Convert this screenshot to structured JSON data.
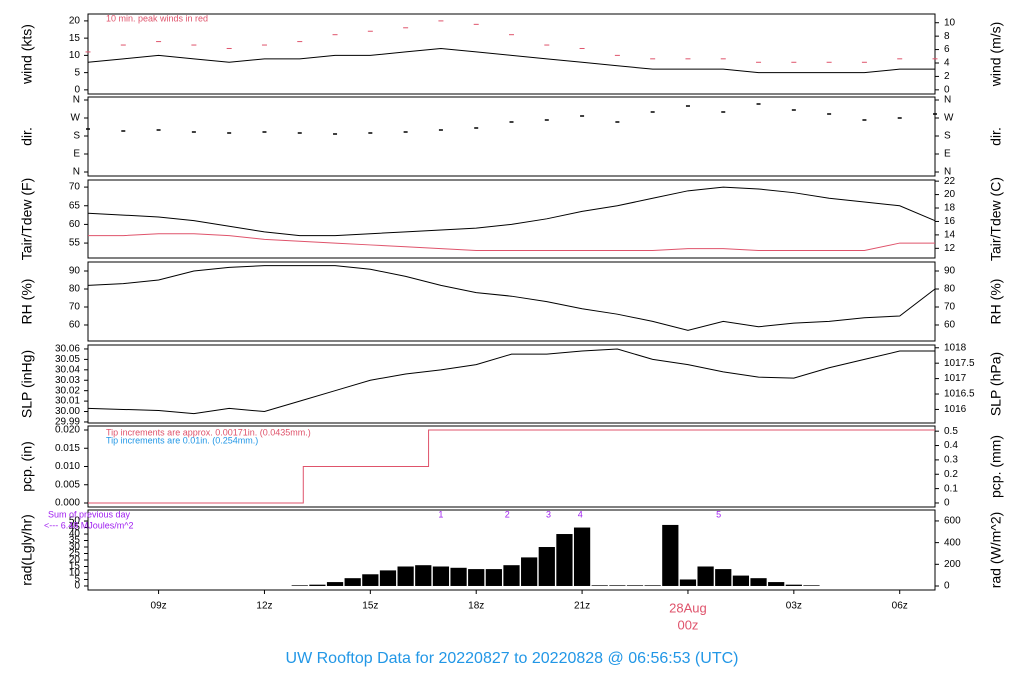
{
  "title": "UW Rooftop Data for 20220827  to  20220828 @ 06:56:53  (UTC)",
  "chart_data": [
    {
      "type": "line",
      "ylabel": "wind (kts)",
      "y2label": "wind (m/s)",
      "xlim": [
        7,
        31
      ],
      "ylim": [
        -1.2,
        22
      ],
      "yticks": [
        0,
        5,
        10,
        15,
        20
      ],
      "y2lim": [
        -0.62,
        11.3
      ],
      "y2ticks": [
        0,
        2,
        4,
        6,
        8,
        10
      ],
      "annotations": [
        {
          "text": "10 min. peak winds in red",
          "color": "#df536b"
        }
      ],
      "x": [
        7,
        8,
        9,
        10,
        11,
        12,
        13,
        14,
        15,
        16,
        17,
        18,
        19,
        20,
        21,
        22,
        23,
        24,
        25,
        26,
        27,
        28,
        29,
        30,
        31
      ],
      "series": [
        {
          "color": "#000000",
          "style": "line",
          "values": [
            8,
            9,
            10,
            9,
            8,
            9,
            9,
            10,
            10,
            11,
            12,
            11,
            10,
            9,
            8,
            7,
            6,
            6,
            6,
            5,
            5,
            5,
            5,
            6,
            6
          ]
        },
        {
          "color": "#df536b",
          "style": "dash",
          "values": [
            11,
            13,
            14,
            13,
            12,
            13,
            14,
            16,
            17,
            18,
            20,
            19,
            16,
            13,
            12,
            10,
            9,
            9,
            9,
            8,
            8,
            8,
            8,
            9,
            9
          ]
        }
      ]
    },
    {
      "type": "scatter",
      "ylabel": "dir.",
      "y2label": "dir.",
      "xlim": [
        7,
        31
      ],
      "ylim": [
        -20,
        375
      ],
      "yticks": [
        {
          "value": 0,
          "label": "N"
        },
        {
          "value": 90,
          "label": "E"
        },
        {
          "value": 180,
          "label": "S"
        },
        {
          "value": 270,
          "label": "W"
        },
        {
          "value": 360,
          "label": "N"
        }
      ],
      "y2lim": [
        -20,
        375
      ],
      "y2ticks": [
        {
          "value": 0,
          "label": "N"
        },
        {
          "value": 90,
          "label": "E"
        },
        {
          "value": 180,
          "label": "S"
        },
        {
          "value": 270,
          "label": "W"
        },
        {
          "value": 360,
          "label": "N"
        }
      ],
      "x": [
        7,
        8,
        9,
        10,
        11,
        12,
        13,
        14,
        15,
        16,
        17,
        18,
        19,
        20,
        21,
        22,
        23,
        24,
        25,
        26,
        27,
        28,
        29,
        30,
        31
      ],
      "series": [
        {
          "color": "#000000",
          "style": "scatter",
          "values": [
            215,
            205,
            210,
            200,
            195,
            200,
            195,
            190,
            195,
            200,
            210,
            220,
            250,
            260,
            280,
            250,
            300,
            330,
            300,
            340,
            310,
            290,
            260,
            270,
            290
          ]
        }
      ]
    },
    {
      "type": "line",
      "ylabel": "Tair/Tdew (F)",
      "y2label": "Tair/Tdew (C)",
      "xlim": [
        7,
        31
      ],
      "ylim": [
        51,
        71.9
      ],
      "yticks": [
        55,
        60,
        65,
        70
      ],
      "y2lim": [
        10.56,
        22.17
      ],
      "y2ticks": [
        12,
        14,
        16,
        18,
        20,
        22
      ],
      "x": [
        7,
        8,
        9,
        10,
        11,
        12,
        13,
        14,
        15,
        16,
        17,
        18,
        19,
        20,
        21,
        22,
        23,
        24,
        25,
        26,
        27,
        28,
        29,
        30,
        31
      ],
      "series": [
        {
          "color": "#000000",
          "style": "line",
          "values": [
            63,
            62.5,
            62,
            61,
            59.5,
            58,
            57,
            57,
            57.5,
            58,
            58.5,
            59,
            60,
            61.5,
            63.5,
            65,
            67,
            69,
            70,
            69.5,
            68.5,
            67,
            66,
            65,
            61
          ]
        },
        {
          "color": "#df536b",
          "style": "line",
          "values": [
            57,
            57,
            57.5,
            57.5,
            57,
            56,
            55.5,
            55,
            54.5,
            54,
            53.5,
            53,
            53,
            53,
            53,
            53,
            53,
            53.5,
            53.5,
            53,
            53,
            53,
            53,
            55,
            55
          ]
        }
      ]
    },
    {
      "type": "line",
      "ylabel": "RH (%)",
      "y2label": "RH (%)",
      "xlim": [
        7,
        31
      ],
      "ylim": [
        51.1,
        95
      ],
      "yticks": [
        60,
        70,
        80,
        90
      ],
      "y2lim": [
        51.1,
        95
      ],
      "y2ticks": [
        60,
        70,
        80,
        90
      ],
      "x": [
        7,
        8,
        9,
        10,
        11,
        12,
        13,
        14,
        15,
        16,
        17,
        18,
        19,
        20,
        21,
        22,
        23,
        24,
        25,
        26,
        27,
        28,
        29,
        30,
        31
      ],
      "series": [
        {
          "color": "#000000",
          "style": "line",
          "values": [
            82,
            83,
            85,
            90,
            92,
            93,
            93,
            93,
            91,
            87,
            82,
            78,
            76,
            73,
            69,
            66,
            62,
            57,
            62,
            59,
            61,
            62,
            64,
            65,
            80
          ]
        }
      ]
    },
    {
      "type": "line",
      "ylabel": "SLP (inHg)",
      "y2label": "SLP (hPa)",
      "xlim": [
        7,
        31
      ],
      "ylim": [
        29.989,
        30.0638
      ],
      "yticks": [
        29.99,
        {
          "value": 30,
          "label": "30.00"
        },
        30.01,
        30.02,
        30.03,
        30.04,
        30.05,
        30.06
      ],
      "y2lim": [
        1015.56,
        1018.09
      ],
      "y2ticks": [
        1016,
        1016.5,
        1017,
        1017.5,
        1018
      ],
      "x": [
        7,
        8,
        9,
        10,
        11,
        12,
        13,
        14,
        15,
        16,
        17,
        18,
        19,
        20,
        21,
        22,
        23,
        24,
        25,
        26,
        27,
        28,
        29,
        30,
        31
      ],
      "series": [
        {
          "color": "#000000",
          "style": "line",
          "values": [
            30.003,
            30.002,
            30.001,
            29.998,
            30.003,
            30.0,
            30.01,
            30.02,
            30.03,
            30.036,
            30.04,
            30.045,
            30.055,
            30.055,
            30.058,
            30.06,
            30.05,
            30.045,
            30.038,
            30.033,
            30.032,
            30.042,
            30.05,
            30.058,
            30.058
          ]
        }
      ]
    },
    {
      "type": "step",
      "ylabel": "pcp. (in)",
      "y2label": "pcp. (mm)",
      "xlim": [
        7,
        31
      ],
      "ylim": [
        -0.0011,
        0.0211
      ],
      "yticks": [
        {
          "value": 0,
          "label": "0.000"
        },
        {
          "value": 0.005,
          "label": "0.005"
        },
        {
          "value": 0.01,
          "label": "0.010"
        },
        {
          "value": 0.015,
          "label": "0.015"
        },
        {
          "value": 0.02,
          "label": "0.020"
        }
      ],
      "y2lim": [
        -0.028,
        0.536
      ],
      "y2ticks": [
        0,
        0.1,
        0.2,
        0.3,
        0.4,
        0.5
      ],
      "annotations": [
        {
          "text": "Tip increments are approx. 0.00171in. (0.0435mm.)",
          "color": "#df536b"
        },
        {
          "text": "Tip increments are 0.01in. (0.254mm.)",
          "color": "#2297e6"
        }
      ],
      "x": [
        7,
        13.1,
        16.65,
        31
      ],
      "series": [
        {
          "color": "#df536b",
          "style": "step",
          "values": [
            0,
            0.01,
            0.02,
            0.02
          ]
        }
      ]
    },
    {
      "type": "bar",
      "ylabel": "rad(Lgly/hr)",
      "y2label": "rad (W/m^2)",
      "xlim": [
        7,
        31
      ],
      "ylim": [
        -3.1,
        58.5
      ],
      "yticks": [
        0,
        5,
        10,
        15,
        20,
        25,
        30,
        35,
        40,
        45,
        50
      ],
      "y2lim": [
        -37,
        701
      ],
      "y2ticks": [
        0,
        200,
        400,
        600
      ],
      "annotations": [
        {
          "text": "Sum of previous day",
          "color": "#a020f0"
        },
        {
          "text": "<--- 6.48 MJoules/m^2",
          "color": "#a020f0"
        }
      ],
      "markers": [
        {
          "x": 17.0,
          "label": "1"
        },
        {
          "x": 18.88,
          "label": "2"
        },
        {
          "x": 20.05,
          "label": "3"
        },
        {
          "x": 20.95,
          "label": "4"
        },
        {
          "x": 24.87,
          "label": "5"
        }
      ],
      "x": [
        13,
        13.5,
        14,
        14.5,
        15,
        15.5,
        16,
        16.5,
        17,
        17.5,
        18,
        18.5,
        19,
        19.5,
        20,
        20.5,
        21,
        21.5,
        22,
        22.5,
        23,
        23.5,
        24,
        24.5,
        25,
        25.5,
        26,
        26.5,
        27,
        27.5
      ],
      "series": [
        {
          "color": "#000000",
          "style": "bar",
          "values": [
            0.5,
            1,
            3,
            6,
            9,
            12,
            15,
            16,
            15,
            14,
            13,
            13,
            16,
            22,
            30,
            40,
            45,
            0.5,
            0.5,
            0.5,
            0.5,
            47,
            5,
            15,
            13,
            8,
            6,
            3,
            1,
            0.5
          ]
        }
      ],
      "xticks": [
        {
          "value": 9,
          "label": "09z"
        },
        {
          "value": 12,
          "label": "12z"
        },
        {
          "value": 15,
          "label": "15z"
        },
        {
          "value": 18,
          "label": "18z"
        },
        {
          "value": 21,
          "label": "21z"
        },
        {
          "value": 24,
          "label": "00z"
        },
        {
          "value": 27,
          "label": "03z"
        },
        {
          "value": 30,
          "label": "06z"
        }
      ],
      "date_label": {
        "value": 24,
        "label": "28Aug"
      }
    }
  ]
}
